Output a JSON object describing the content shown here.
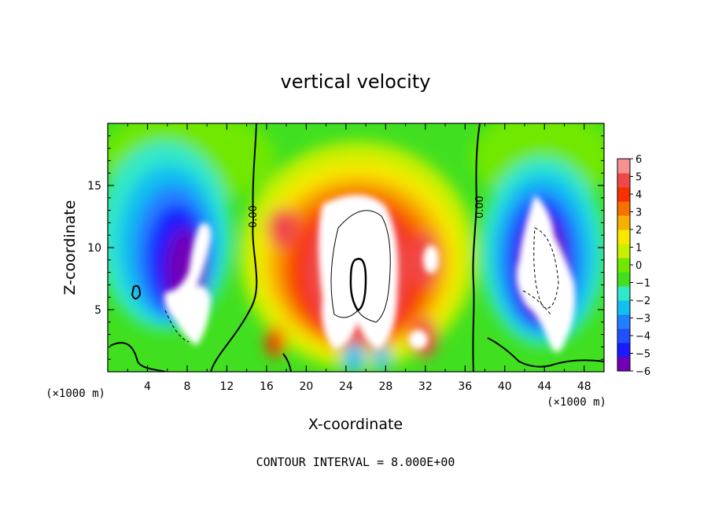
{
  "chart_data": {
    "type": "heatmap",
    "title": "vertical velocity",
    "xlabel": "X-coordinate",
    "ylabel": "Z-coordinate",
    "x_unit": "(×1000 m)",
    "z_unit": "(×1000 m)",
    "footer": "CONTOUR INTERVAL = 8.000E+00",
    "xlim": [
      0,
      50
    ],
    "zlim": [
      0,
      20
    ],
    "x_ticks": [
      "4",
      "8",
      "12",
      "16",
      "20",
      "24",
      "28",
      "32",
      "36",
      "40",
      "44",
      "48"
    ],
    "z_ticks": [
      "5",
      "10",
      "15"
    ],
    "colorbar": {
      "min": -6,
      "max": 6,
      "ticks": [
        "6",
        "5",
        "4",
        "3",
        "2",
        "1",
        "0",
        "−1",
        "−2",
        "−3",
        "−4",
        "−5",
        "−6"
      ],
      "colors": [
        "#6f00b8",
        "#1a1aff",
        "#1f4fff",
        "#2080ff",
        "#10c0f0",
        "#30e8c8",
        "#40e020",
        "#70e800",
        "#c8f000",
        "#f8e800",
        "#f8b000",
        "#f87000",
        "#f83000",
        "#f04848",
        "#f89090"
      ]
    },
    "contour_labels": [
      "0.00",
      "0.00"
    ],
    "contour_interval": 8.0,
    "features": [
      {
        "type": "downdraft",
        "x_center": 9,
        "z_center": 9,
        "value": "< -6"
      },
      {
        "type": "updraft",
        "x_center": 25,
        "z_center": 8,
        "value": "> 6"
      },
      {
        "type": "downdraft",
        "x_center": 44,
        "z_center": 9,
        "value": "< -6"
      }
    ]
  }
}
